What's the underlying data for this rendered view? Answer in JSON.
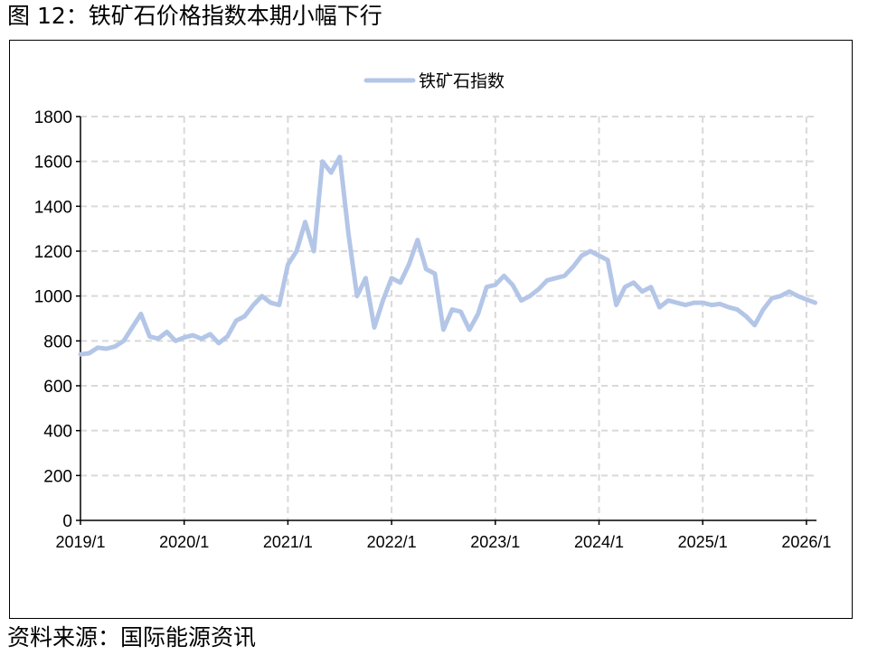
{
  "figure_title": "图 12：铁矿石价格指数本期小幅下行",
  "source": "资料来源：国际能源资讯",
  "colors": {
    "series": "#b4c6e7",
    "grid": "#d9d9d9",
    "axis": "#000000"
  },
  "chart_data": {
    "type": "line",
    "title": "",
    "xlabel": "",
    "ylabel": "",
    "ylim": [
      0,
      1800
    ],
    "y_ticks": [
      "0",
      "200",
      "400",
      "600",
      "800",
      "1000",
      "1200",
      "1400",
      "1600",
      "1800"
    ],
    "x_ticks": [
      "2019/1",
      "2020/1",
      "2021/1",
      "2022/1",
      "2023/1",
      "2024/1",
      "2025/1",
      "2026/1"
    ],
    "grid": true,
    "legend_position": "top-center",
    "series": [
      {
        "name": "铁矿石指数",
        "points": [
          [
            "2019-01",
            740
          ],
          [
            "2019-02",
            745
          ],
          [
            "2019-03",
            770
          ],
          [
            "2019-04",
            765
          ],
          [
            "2019-05",
            775
          ],
          [
            "2019-06",
            800
          ],
          [
            "2019-07",
            860
          ],
          [
            "2019-08",
            920
          ],
          [
            "2019-09",
            820
          ],
          [
            "2019-10",
            810
          ],
          [
            "2019-11",
            840
          ],
          [
            "2019-12",
            800
          ],
          [
            "2020-01",
            815
          ],
          [
            "2020-02",
            825
          ],
          [
            "2020-03",
            810
          ],
          [
            "2020-04",
            830
          ],
          [
            "2020-05",
            790
          ],
          [
            "2020-06",
            820
          ],
          [
            "2020-07",
            890
          ],
          [
            "2020-08",
            910
          ],
          [
            "2020-09",
            960
          ],
          [
            "2020-10",
            1000
          ],
          [
            "2020-11",
            970
          ],
          [
            "2020-12",
            960
          ],
          [
            "2021-01",
            1140
          ],
          [
            "2021-02",
            1200
          ],
          [
            "2021-03",
            1330
          ],
          [
            "2021-04",
            1200
          ],
          [
            "2021-05",
            1600
          ],
          [
            "2021-06",
            1550
          ],
          [
            "2021-07",
            1620
          ],
          [
            "2021-08",
            1280
          ],
          [
            "2021-09",
            1000
          ],
          [
            "2021-10",
            1080
          ],
          [
            "2021-11",
            860
          ],
          [
            "2021-12",
            980
          ],
          [
            "2022-01",
            1080
          ],
          [
            "2022-02",
            1060
          ],
          [
            "2022-03",
            1140
          ],
          [
            "2022-04",
            1250
          ],
          [
            "2022-05",
            1120
          ],
          [
            "2022-06",
            1100
          ],
          [
            "2022-07",
            850
          ],
          [
            "2022-08",
            940
          ],
          [
            "2022-09",
            930
          ],
          [
            "2022-10",
            850
          ],
          [
            "2022-11",
            920
          ],
          [
            "2022-12",
            1040
          ],
          [
            "2023-01",
            1050
          ],
          [
            "2023-02",
            1090
          ],
          [
            "2023-03",
            1050
          ],
          [
            "2023-04",
            980
          ],
          [
            "2023-05",
            1000
          ],
          [
            "2023-06",
            1030
          ],
          [
            "2023-07",
            1070
          ],
          [
            "2023-08",
            1080
          ],
          [
            "2023-09",
            1090
          ],
          [
            "2023-10",
            1130
          ],
          [
            "2023-11",
            1180
          ],
          [
            "2023-12",
            1200
          ],
          [
            "2024-01",
            1180
          ],
          [
            "2024-02",
            1160
          ],
          [
            "2024-03",
            960
          ],
          [
            "2024-04",
            1040
          ],
          [
            "2024-05",
            1060
          ],
          [
            "2024-06",
            1020
          ],
          [
            "2024-07",
            1040
          ],
          [
            "2024-08",
            950
          ],
          [
            "2024-09",
            980
          ],
          [
            "2024-10",
            970
          ],
          [
            "2024-11",
            960
          ],
          [
            "2024-12",
            970
          ],
          [
            "2025-01",
            970
          ],
          [
            "2025-02",
            960
          ],
          [
            "2025-03",
            965
          ],
          [
            "2025-04",
            950
          ],
          [
            "2025-05",
            940
          ],
          [
            "2025-06",
            910
          ],
          [
            "2025-07",
            870
          ],
          [
            "2025-08",
            940
          ],
          [
            "2025-09",
            990
          ],
          [
            "2025-10",
            1000
          ],
          [
            "2025-11",
            1020
          ],
          [
            "2025-12",
            1000
          ],
          [
            "2026-01",
            985
          ],
          [
            "2026-02",
            970
          ]
        ]
      }
    ]
  }
}
